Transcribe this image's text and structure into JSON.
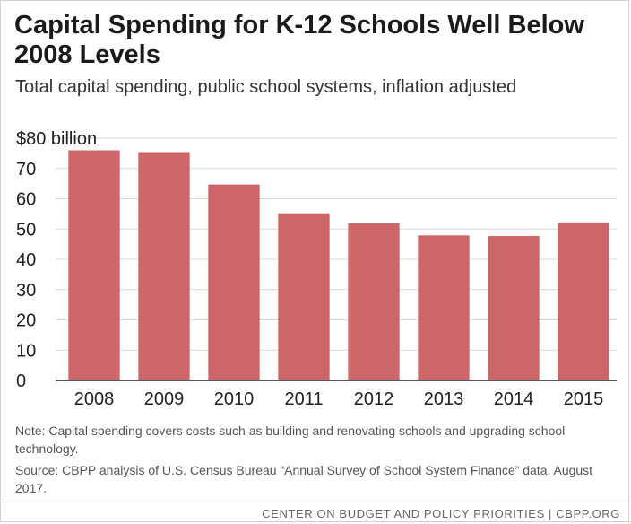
{
  "header": {
    "title": "Capital Spending for K-12 Schools Well Below 2008 Levels",
    "subtitle": "Total capital spending, public school systems, inflation adjusted"
  },
  "chart_data": {
    "type": "bar",
    "categories": [
      "2008",
      "2009",
      "2010",
      "2011",
      "2012",
      "2013",
      "2014",
      "2015"
    ],
    "values": [
      76,
      75.4,
      64.7,
      55.2,
      51.9,
      47.9,
      47.7,
      52.2
    ],
    "ylim": [
      0,
      80
    ],
    "yticks": [
      0,
      10,
      20,
      30,
      40,
      50,
      60,
      70,
      80
    ],
    "ytick_labels": [
      "0",
      "10",
      "20",
      "30",
      "40",
      "50",
      "60",
      "70",
      "$80 billion"
    ],
    "grid": true,
    "bar_color": "#cd6669"
  },
  "notes": {
    "note": "Note:  Capital spending covers costs such as building and renovating schools and upgrading school technology.",
    "source": "Source: CBPP analysis of U.S. Census Bureau “Annual Survey of School System Finance” data, August 2017."
  },
  "footer": {
    "credit": "CENTER ON BUDGET AND POLICY PRIORITIES | CBPP.ORG"
  }
}
